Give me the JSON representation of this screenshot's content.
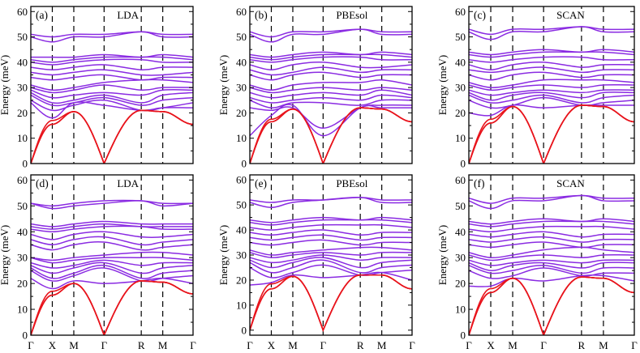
{
  "figure": {
    "description_free": true
  },
  "chart_data": [
    {
      "id": "a",
      "panel_label": "(a)",
      "functional": "LDA",
      "type": "line",
      "ylabel": "Energy (meV)",
      "ylim": [
        0,
        62
      ],
      "yticks": [
        "0",
        "10",
        "20",
        "30",
        "40",
        "50",
        "60"
      ],
      "xticks": [
        "Γ",
        "X",
        "M",
        "Γ",
        "R",
        "M",
        "Γ"
      ],
      "k_path": [
        0,
        1,
        2,
        3.41,
        5.14,
        6.14,
        7.55
      ],
      "acoustic_color": "#e8141c",
      "optical_color": "#8a2be2",
      "acoustic": [
        [
          0,
          15.5,
          20.5,
          0,
          21,
          20.5,
          15.5
        ],
        [
          0,
          15.5,
          20.5,
          0,
          21,
          20.5,
          15.5
        ],
        [
          0,
          17,
          20.5,
          0,
          21,
          20.5,
          15.5
        ]
      ],
      "optical": [
        [
          24,
          18,
          24,
          23,
          21,
          22,
          22
        ],
        [
          25,
          21,
          23,
          25,
          21,
          22,
          24
        ],
        [
          27,
          23,
          24,
          26,
          23,
          25,
          26
        ],
        [
          28,
          24,
          25,
          27,
          24,
          27,
          28
        ],
        [
          29,
          26,
          27,
          28,
          27,
          29,
          29
        ],
        [
          30,
          28,
          29,
          31,
          29,
          30,
          30
        ],
        [
          31,
          29,
          30,
          32,
          33,
          33,
          32
        ],
        [
          34,
          33,
          34,
          35,
          33,
          34,
          34
        ],
        [
          36,
          35,
          36,
          37,
          35,
          35,
          36
        ],
        [
          38,
          37,
          38,
          39,
          37,
          38,
          38
        ],
        [
          40,
          39,
          40,
          41,
          41,
          40,
          40
        ],
        [
          41,
          40,
          41,
          42,
          42,
          42,
          41
        ],
        [
          42,
          42,
          42,
          43,
          42,
          43,
          42
        ],
        [
          50,
          48,
          50,
          50,
          52,
          50,
          50
        ],
        [
          51,
          50,
          51,
          51,
          52,
          51,
          51
        ]
      ]
    },
    {
      "id": "b",
      "panel_label": "(b)",
      "functional": "PBEsol",
      "type": "line",
      "ylabel": "Energy (meV)",
      "ylim": [
        0,
        62
      ],
      "yticks": [
        "0",
        "10",
        "20",
        "30",
        "40",
        "50",
        "60"
      ],
      "xticks": [
        "Γ",
        "X",
        "M",
        "Γ",
        "R",
        "M",
        "Γ"
      ],
      "k_path": [
        0,
        1,
        2,
        3.41,
        5.14,
        6.14,
        7.55
      ],
      "acoustic_color": "#e8141c",
      "optical_color": "#8a2be2",
      "acoustic": [
        [
          0,
          16.5,
          21.5,
          0,
          22,
          21.5,
          16.5
        ],
        [
          0,
          16.5,
          21.5,
          0,
          22,
          21.5,
          16.5
        ],
        [
          0,
          17.5,
          21.5,
          0,
          22,
          21.5,
          16.5
        ]
      ],
      "optical": [
        [
          11,
          19,
          23,
          11,
          22,
          22,
          22
        ],
        [
          22,
          21,
          22,
          14,
          22,
          23,
          23
        ],
        [
          25,
          22,
          24,
          24,
          23,
          25,
          25
        ],
        [
          26,
          24,
          25,
          26,
          25,
          27,
          26
        ],
        [
          28,
          26,
          27,
          28,
          27,
          29,
          27
        ],
        [
          30,
          28,
          29,
          30,
          29,
          30,
          29
        ],
        [
          31,
          29,
          31,
          32,
          32,
          33,
          31
        ],
        [
          35,
          33,
          35,
          36,
          34,
          35,
          35
        ],
        [
          37,
          35,
          36,
          38,
          36,
          37,
          37
        ],
        [
          39,
          37,
          39,
          40,
          38,
          38,
          39
        ],
        [
          41,
          40,
          41,
          42,
          42,
          41,
          41
        ],
        [
          42,
          41,
          42,
          43,
          43,
          43,
          42
        ],
        [
          43,
          42,
          43,
          44,
          43,
          44,
          43
        ],
        [
          51,
          48,
          51,
          51,
          53,
          51,
          51
        ],
        [
          52,
          50,
          52,
          52,
          53,
          52,
          52
        ]
      ]
    },
    {
      "id": "c",
      "panel_label": "(c)",
      "functional": "SCAN",
      "type": "line",
      "ylabel": "Energy (meV)",
      "ylim": [
        0,
        62
      ],
      "yticks": [
        "0",
        "10",
        "20",
        "30",
        "40",
        "50",
        "60"
      ],
      "xticks": [
        "Γ",
        "X",
        "M",
        "Γ",
        "R",
        "M",
        "Γ"
      ],
      "k_path": [
        0,
        1,
        2,
        3.41,
        5.14,
        6.14,
        7.55
      ],
      "acoustic_color": "#e8141c",
      "optical_color": "#8a2be2",
      "acoustic": [
        [
          0,
          16,
          22.5,
          0,
          23,
          22.5,
          16.5
        ],
        [
          0,
          16,
          22.5,
          0,
          23,
          22.5,
          16.5
        ],
        [
          0,
          17.5,
          22.5,
          0,
          23,
          22.5,
          16.5
        ]
      ],
      "optical": [
        [
          20,
          19,
          23,
          22,
          23,
          23,
          23
        ],
        [
          25,
          22,
          23,
          26,
          23,
          24,
          25
        ],
        [
          27,
          24,
          25,
          27,
          24,
          26,
          27
        ],
        [
          28,
          25,
          27,
          28,
          26,
          28,
          28
        ],
        [
          29,
          27,
          28,
          29,
          28,
          29,
          29
        ],
        [
          31,
          29,
          30,
          31,
          30,
          31,
          31
        ],
        [
          32,
          30,
          31,
          33,
          33,
          33,
          32
        ],
        [
          35,
          33,
          35,
          36,
          34,
          35,
          35
        ],
        [
          37,
          36,
          37,
          38,
          36,
          37,
          37
        ],
        [
          39,
          37,
          39,
          40,
          38,
          39,
          39
        ],
        [
          41,
          40,
          41,
          42,
          42,
          41,
          41
        ],
        [
          43,
          42,
          43,
          44,
          44,
          44,
          43
        ],
        [
          44,
          43,
          44,
          45,
          44,
          45,
          44
        ],
        [
          52,
          49,
          52,
          52,
          54,
          52,
          52
        ],
        [
          53,
          51,
          53,
          53,
          54,
          53,
          53
        ]
      ]
    },
    {
      "id": "d",
      "panel_label": "(d)",
      "functional": "LDA",
      "type": "line",
      "ylabel": "Energy (meV)",
      "ylim": [
        0,
        62
      ],
      "yticks": [
        "0",
        "10",
        "20",
        "30",
        "40",
        "50",
        "60"
      ],
      "xticks": [
        "Γ",
        "X",
        "M",
        "Γ",
        "R",
        "M",
        "Γ"
      ],
      "k_path": [
        0,
        1,
        2,
        3.41,
        5.14,
        6.14,
        7.55
      ],
      "acoustic_color": "#e8141c",
      "optical_color": "#8a2be2",
      "acoustic": [
        [
          0,
          15.5,
          20,
          0,
          21,
          20.5,
          16
        ],
        [
          0,
          15.5,
          20,
          0,
          21,
          20.5,
          16
        ],
        [
          0,
          17,
          20,
          0,
          21,
          20.5,
          16
        ]
      ],
      "optical": [
        [
          22,
          18,
          21,
          20,
          21,
          22,
          20
        ],
        [
          25,
          21,
          23,
          26,
          21,
          22,
          23
        ],
        [
          26,
          22,
          24,
          27,
          22,
          24,
          25
        ],
        [
          27,
          24,
          26,
          28,
          24,
          26,
          27
        ],
        [
          28,
          26,
          27,
          29,
          27,
          28,
          28
        ],
        [
          30,
          28,
          29,
          30,
          30,
          30,
          29
        ],
        [
          30,
          29,
          30,
          31,
          32,
          32,
          31
        ],
        [
          35,
          33,
          35,
          36,
          33,
          34,
          35
        ],
        [
          37,
          35,
          37,
          38,
          35,
          36,
          37
        ],
        [
          39,
          37,
          39,
          40,
          38,
          38,
          39
        ],
        [
          41,
          40,
          41,
          42,
          42,
          41,
          41
        ],
        [
          42,
          41,
          42,
          43,
          42,
          42,
          42
        ],
        [
          43,
          42,
          43,
          44,
          43,
          43,
          43
        ],
        [
          51,
          49,
          50,
          51,
          52,
          50,
          51
        ],
        [
          51,
          50,
          51,
          52,
          52,
          51,
          51
        ]
      ]
    },
    {
      "id": "e",
      "panel_label": "(e)",
      "functional": "PBEsol",
      "type": "line",
      "ylabel": "Energy (meV)",
      "ylim": [
        -2,
        62
      ],
      "yticks": [
        "0",
        "10",
        "20",
        "30",
        "40",
        "50",
        "60"
      ],
      "xticks": [
        "Γ",
        "X",
        "M",
        "Γ",
        "R",
        "M",
        "Γ"
      ],
      "k_path": [
        0,
        1,
        2,
        3.41,
        5.14,
        6.14,
        7.55
      ],
      "acoustic_color": "#e8141c",
      "optical_color": "#8a2be2",
      "acoustic": [
        [
          0,
          16.5,
          21.5,
          -1.5,
          22,
          22,
          16.5
        ],
        [
          0,
          16.5,
          21.5,
          -1.5,
          22,
          22,
          16.5
        ],
        [
          0,
          18.5,
          21.5,
          -1.5,
          22,
          22,
          16.5
        ]
      ],
      "optical": [
        [
          18,
          19,
          22,
          21,
          22,
          23,
          20
        ],
        [
          25,
          21,
          23,
          26,
          22,
          23,
          24
        ],
        [
          27,
          23,
          25,
          28,
          23,
          25,
          26
        ],
        [
          28,
          25,
          27,
          29,
          25,
          27,
          28
        ],
        [
          29,
          27,
          28,
          30,
          28,
          29,
          29
        ],
        [
          31,
          29,
          30,
          31,
          30,
          31,
          31
        ],
        [
          32,
          30,
          31,
          32,
          33,
          33,
          32
        ],
        [
          35,
          34,
          35,
          36,
          34,
          35,
          35
        ],
        [
          37,
          36,
          37,
          38,
          36,
          37,
          37
        ],
        [
          39,
          38,
          39,
          40,
          38,
          39,
          39
        ],
        [
          41,
          40,
          41,
          42,
          42,
          42,
          41
        ],
        [
          43,
          42,
          43,
          44,
          44,
          44,
          43
        ],
        [
          44,
          43,
          44,
          45,
          44,
          45,
          44
        ],
        [
          51,
          49,
          51,
          52,
          53,
          51,
          51
        ],
        [
          52,
          51,
          52,
          52,
          53,
          52,
          52
        ]
      ]
    },
    {
      "id": "f",
      "panel_label": "(f)",
      "functional": "SCAN",
      "type": "line",
      "ylabel": "Energy (meV)",
      "ylim": [
        0,
        62
      ],
      "yticks": [
        "0",
        "10",
        "20",
        "30",
        "40",
        "50",
        "60"
      ],
      "xticks": [
        "Γ",
        "X",
        "M",
        "Γ",
        "R",
        "M",
        "Γ"
      ],
      "k_path": [
        0,
        1,
        2,
        3.41,
        5.14,
        6.14,
        7.55
      ],
      "acoustic_color": "#e8141c",
      "optical_color": "#8a2be2",
      "acoustic": [
        [
          0,
          16.5,
          22,
          0,
          22.5,
          22,
          16.5
        ],
        [
          0,
          16.5,
          22,
          0,
          22.5,
          22,
          16.5
        ],
        [
          0,
          18,
          22,
          0,
          22.5,
          22,
          16.5
        ]
      ],
      "optical": [
        [
          19,
          19,
          22,
          21,
          23,
          23,
          21
        ],
        [
          25,
          22,
          23,
          26,
          23,
          24,
          24
        ],
        [
          27,
          24,
          25,
          27,
          24,
          26,
          26
        ],
        [
          28,
          25,
          27,
          28,
          26,
          28,
          28
        ],
        [
          29,
          27,
          28,
          29,
          28,
          29,
          29
        ],
        [
          31,
          29,
          30,
          31,
          30,
          31,
          31
        ],
        [
          32,
          30,
          31,
          33,
          34,
          33,
          32
        ],
        [
          35,
          34,
          35,
          36,
          34,
          35,
          35
        ],
        [
          37,
          36,
          37,
          38,
          36,
          37,
          37
        ],
        [
          39,
          38,
          39,
          40,
          38,
          39,
          39
        ],
        [
          41,
          40,
          41,
          42,
          42,
          42,
          41
        ],
        [
          43,
          42,
          43,
          44,
          44,
          44,
          43
        ],
        [
          44,
          43,
          44,
          45,
          44,
          45,
          44
        ],
        [
          52,
          49,
          52,
          52,
          54,
          52,
          52
        ],
        [
          53,
          51,
          53,
          53,
          54,
          53,
          53
        ]
      ]
    }
  ]
}
